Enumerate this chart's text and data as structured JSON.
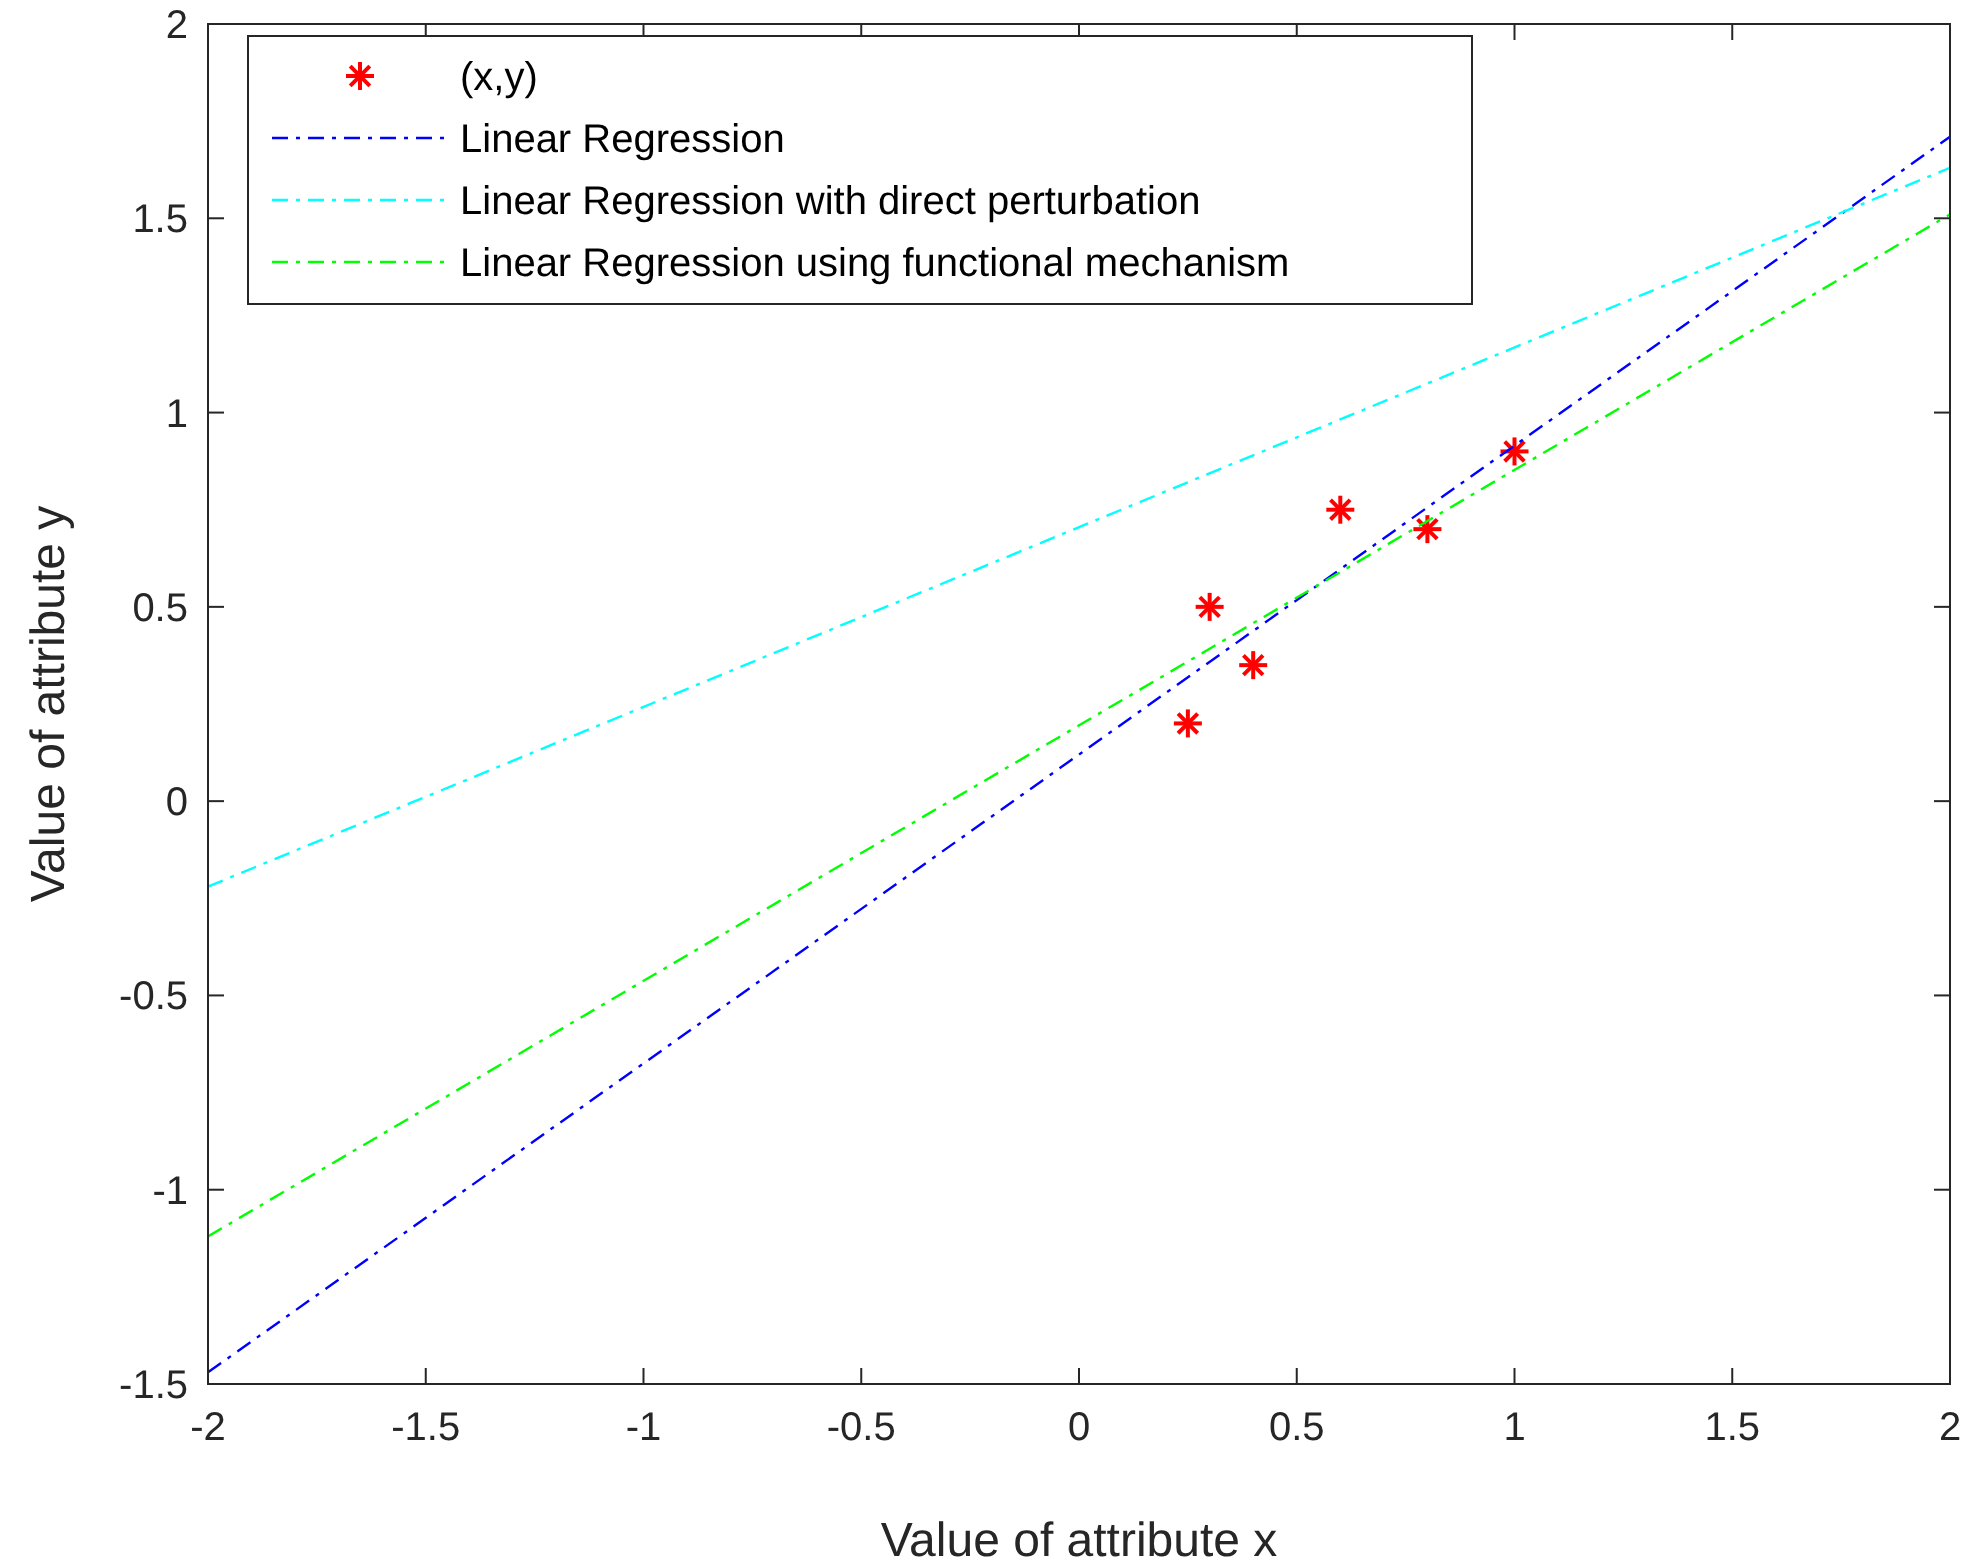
{
  "chart_data": {
    "type": "scatter",
    "xlabel": "Value of attribute x",
    "ylabel": "Value of attribute y",
    "xlim": [
      -2,
      2
    ],
    "ylim": [
      -1.5,
      2
    ],
    "xticks": [
      -2,
      -1.5,
      -1,
      -0.5,
      0,
      0.5,
      1,
      1.5,
      2
    ],
    "yticks": [
      -1.5,
      -1,
      -0.5,
      0,
      0.5,
      1,
      1.5,
      2
    ],
    "grid": false,
    "legend": "top left",
    "series": [
      {
        "name": "(x,y)",
        "marker": "cross",
        "color": "#ff0000",
        "x": [
          0.25,
          0.3,
          0.4,
          0.6,
          0.8,
          1
        ],
        "values": [
          0.2,
          0.5,
          0.35,
          0.75,
          0.7,
          0.9
        ]
      },
      {
        "name": "Linear Regression",
        "type": "line",
        "line_style": "dashdot",
        "color": "#0000ff",
        "x": [
          -2,
          2
        ],
        "values": [
          -1.47,
          1.71
        ]
      },
      {
        "name": "Linear Regression with direct perturbation",
        "type": "line",
        "line_style": "dashdot",
        "color": "#00ffff",
        "x": [
          -2,
          2
        ],
        "values": [
          -0.22,
          1.63
        ]
      },
      {
        "name": "Linear Regression using functional mechanism",
        "type": "line",
        "line_style": "dashdot",
        "color": "#00ff00",
        "x": [
          -2,
          2
        ],
        "values": [
          -1.12,
          1.51
        ]
      }
    ]
  }
}
